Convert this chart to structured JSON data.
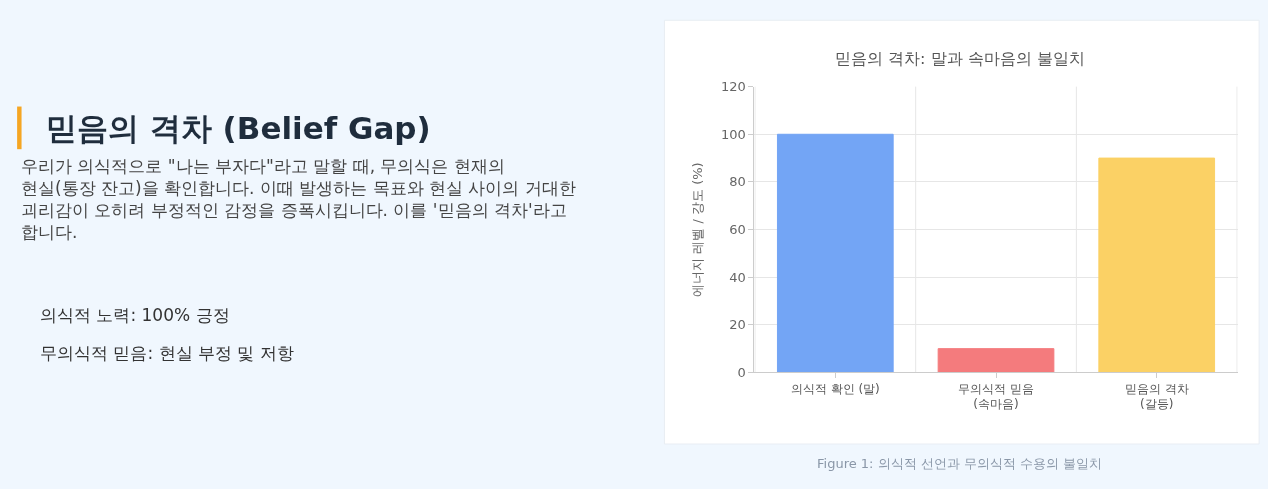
{
  "chart_data": {
    "type": "bar",
    "title": "믿음의 격차: 말과 속마음의 불일치",
    "categories": [
      "의식적 확인 (말)",
      "무의식적 믿음\n(속마음)",
      "믿음의 격차\n(갈등)"
    ],
    "values": [
      100,
      10,
      90
    ],
    "colors": [
      "#73a5f5",
      "#f47b7d",
      "#fbd165"
    ],
    "ylabel": "에너지 레벨 / 강도 (%)",
    "ylim": [
      0,
      120
    ],
    "yticks": [
      0,
      20,
      40,
      60,
      80,
      100,
      120
    ],
    "grid": true,
    "annotations": [
      "믿음의 격차 (Belief Gap)",
      "우리가 의식적으로 \"나는 부자다\"라고 말할 때, 무의식은 현재의 현실(통장 잔고)을 확인합니다. 이때 발생하는 목표와 현실 사이의 거대한 괴리감이 오히려 부정적인 감정을 증폭시킵니다. 이를 '믿음의 격차'라고 합니다.",
      "의식적 노력: 100% 긍정",
      "무의식적 믿음: 현실 부정 및 저항",
      "Figure 1: 의식적 선언과 무의식적 수용의 불일치"
    ]
  }
}
